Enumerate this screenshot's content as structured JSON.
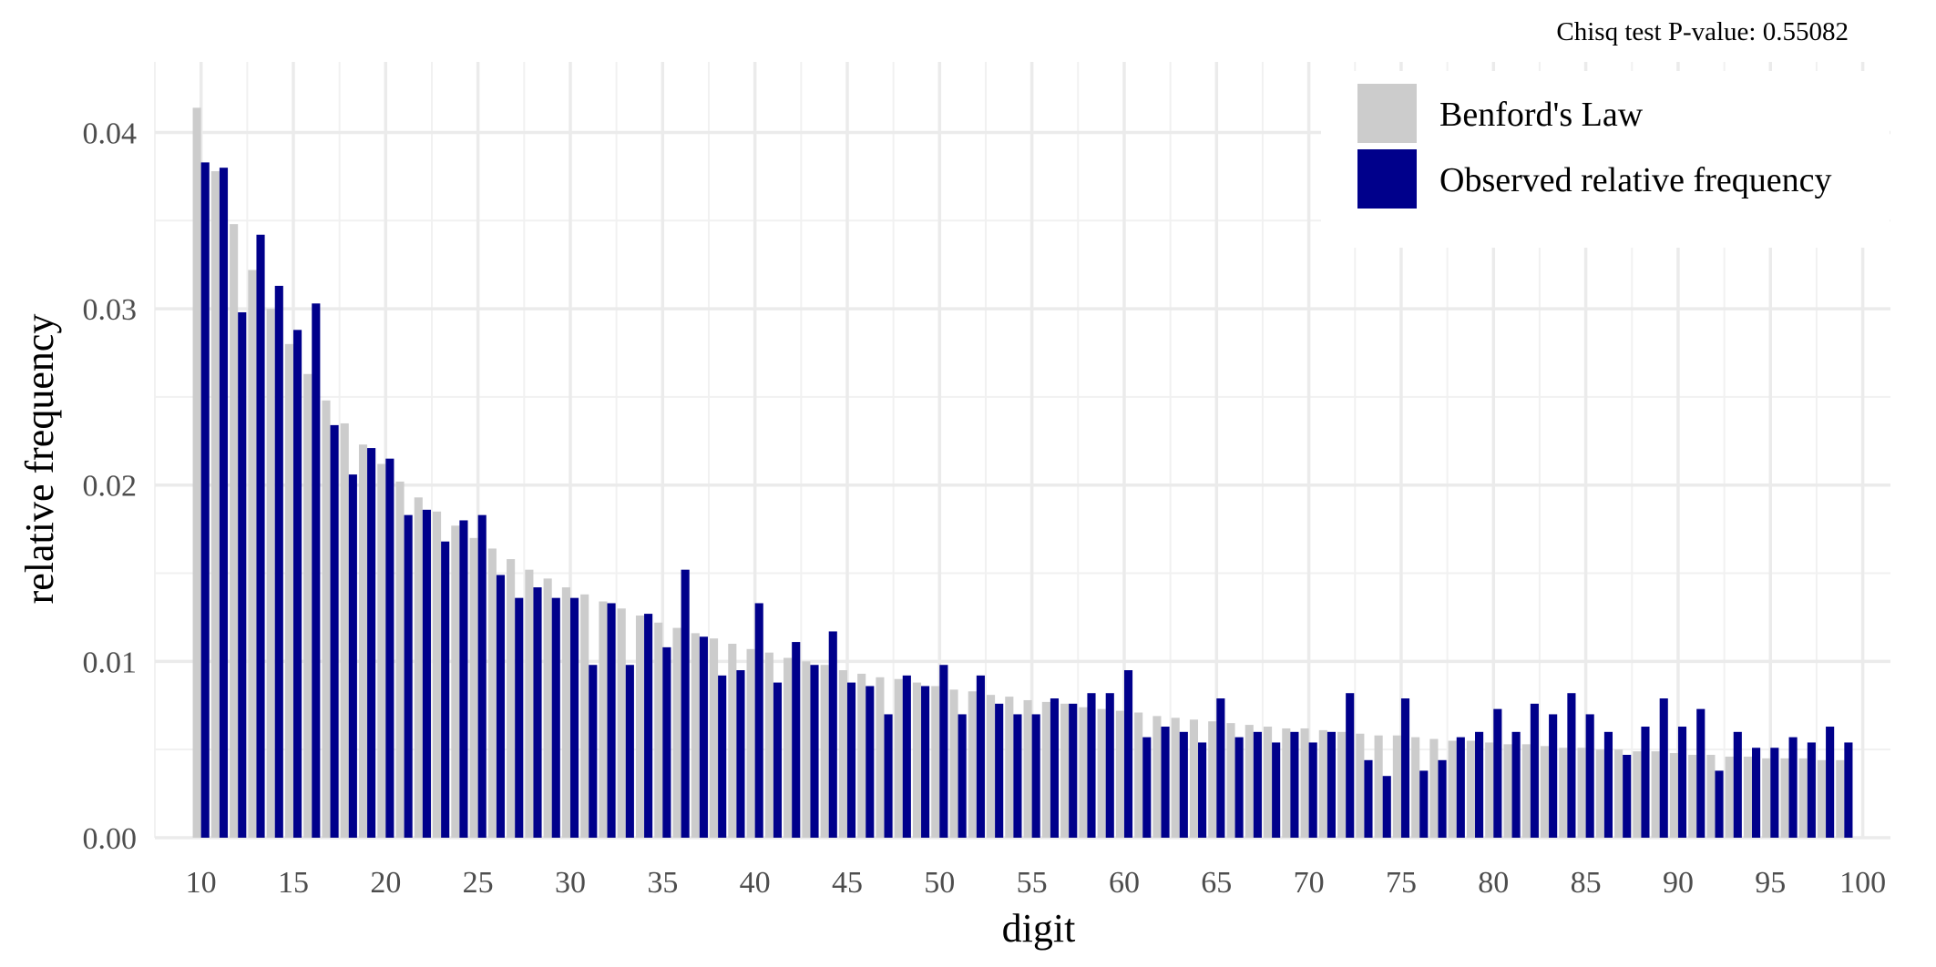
{
  "chart_data": {
    "type": "bar",
    "subtitle": "Chisq test P-value: 0.55082",
    "xlabel": "digit",
    "ylabel": "relative frequency",
    "xlim": [
      7.5,
      101.5
    ],
    "ylim": [
      0,
      0.044
    ],
    "x_ticks": [
      "10",
      "15",
      "20",
      "25",
      "30",
      "35",
      "40",
      "45",
      "50",
      "55",
      "60",
      "65",
      "70",
      "75",
      "80",
      "85",
      "90",
      "95",
      "100"
    ],
    "y_ticks": [
      "0.00",
      "0.01",
      "0.02",
      "0.03",
      "0.04"
    ],
    "grid": true,
    "legend_position": "top-right",
    "x": [
      10,
      11,
      12,
      13,
      14,
      15,
      16,
      17,
      18,
      19,
      20,
      21,
      22,
      23,
      24,
      25,
      26,
      27,
      28,
      29,
      30,
      31,
      32,
      33,
      34,
      35,
      36,
      37,
      38,
      39,
      40,
      41,
      42,
      43,
      44,
      45,
      46,
      47,
      48,
      49,
      50,
      51,
      52,
      53,
      54,
      55,
      56,
      57,
      58,
      59,
      60,
      61,
      62,
      63,
      64,
      65,
      66,
      67,
      68,
      69,
      70,
      71,
      72,
      73,
      74,
      75,
      76,
      77,
      78,
      79,
      80,
      81,
      82,
      83,
      84,
      85,
      86,
      87,
      88,
      89,
      90,
      91,
      92,
      93,
      94,
      95,
      96,
      97,
      98,
      99
    ],
    "series": [
      {
        "name": "Benford's Law",
        "color": "#cccccc",
        "values": [
          0.0414,
          0.0378,
          0.0348,
          0.0322,
          0.03,
          0.028,
          0.0263,
          0.0248,
          0.0235,
          0.0223,
          0.0212,
          0.0202,
          0.0193,
          0.0185,
          0.0177,
          0.017,
          0.0164,
          0.0158,
          0.0152,
          0.0147,
          0.0142,
          0.0138,
          0.0134,
          0.013,
          0.0126,
          0.0122,
          0.0119,
          0.0116,
          0.0113,
          0.011,
          0.0107,
          0.0105,
          0.0102,
          0.01,
          0.0098,
          0.0095,
          0.0093,
          0.0091,
          0.009,
          0.0088,
          0.0086,
          0.0084,
          0.0083,
          0.0081,
          0.008,
          0.0078,
          0.0077,
          0.0076,
          0.0074,
          0.0073,
          0.0072,
          0.0071,
          0.0069,
          0.0068,
          0.0067,
          0.0066,
          0.0065,
          0.0064,
          0.0063,
          0.0062,
          0.0062,
          0.0061,
          0.006,
          0.0059,
          0.0058,
          0.0058,
          0.0057,
          0.0056,
          0.0055,
          0.0055,
          0.0054,
          0.0053,
          0.0053,
          0.0052,
          0.0051,
          0.0051,
          0.005,
          0.005,
          0.0049,
          0.0049,
          0.0048,
          0.0047,
          0.0047,
          0.0046,
          0.0046,
          0.0045,
          0.0045,
          0.0045,
          0.0044,
          0.0044
        ]
      },
      {
        "name": "Observed relative frequency",
        "color": "#00008b",
        "values": [
          0.0383,
          0.038,
          0.0298,
          0.0342,
          0.0313,
          0.0288,
          0.0303,
          0.0234,
          0.0206,
          0.0221,
          0.0215,
          0.0183,
          0.0186,
          0.0168,
          0.018,
          0.0183,
          0.0149,
          0.0136,
          0.0142,
          0.0136,
          0.0136,
          0.0098,
          0.0133,
          0.0098,
          0.0127,
          0.0108,
          0.0152,
          0.0114,
          0.0092,
          0.0095,
          0.0133,
          0.0088,
          0.0111,
          0.0098,
          0.0117,
          0.0088,
          0.0086,
          0.007,
          0.0092,
          0.0086,
          0.0098,
          0.007,
          0.0092,
          0.0076,
          0.007,
          0.007,
          0.0079,
          0.0076,
          0.0082,
          0.0082,
          0.0095,
          0.0057,
          0.0063,
          0.006,
          0.0054,
          0.0079,
          0.0057,
          0.006,
          0.0054,
          0.006,
          0.0054,
          0.006,
          0.0082,
          0.0044,
          0.0035,
          0.0079,
          0.0038,
          0.0044,
          0.0057,
          0.006,
          0.0073,
          0.006,
          0.0076,
          0.007,
          0.0082,
          0.007,
          0.006,
          0.0047,
          0.0063,
          0.0079,
          0.0063,
          0.0073,
          0.0038,
          0.006,
          0.0051,
          0.0051,
          0.0057,
          0.0054,
          0.0063,
          0.0054
        ]
      }
    ]
  }
}
